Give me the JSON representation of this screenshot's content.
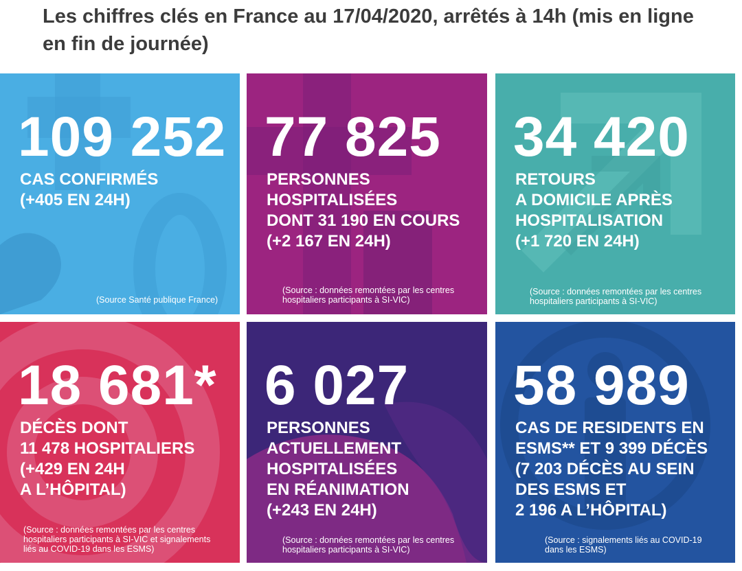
{
  "header": {
    "title": "Les chiffres clés en France au 17/04/2020, arrêtés à 14h (mis en ligne en fin de journée)"
  },
  "colors": {
    "confirmed": "#4aaee3",
    "hospitalized": "#9c2480",
    "returned_home": "#48aeab",
    "deaths": "#d8325a",
    "icu": "#3c2678",
    "esms": "#2354a0",
    "text": "#ffffff",
    "title": "#3c3c3c"
  },
  "tiles": [
    {
      "number": "109 252",
      "lines": [
        "CAS CONFIRMÉS",
        "(+405 EN 24H)"
      ],
      "source_lines": [
        "(Source Santé publique France)"
      ],
      "icon": "plus-zero-watermark"
    },
    {
      "number": "77 825",
      "lines": [
        "PERSONNES",
        "HOSPITALISÉES",
        "DONT 31 190 EN COURS",
        "(+2 167 EN 24H)"
      ],
      "source_lines": [
        "(Source : données remontées par les centres",
        "hospitaliers participants à SI-VIC)"
      ],
      "icon": "cross-watermark"
    },
    {
      "number": "34 420",
      "lines": [
        "RETOURS",
        "A DOMICILE APRÈS",
        "HOSPITALISATION",
        "(+1 720 EN 24H)"
      ],
      "source_lines": [
        "(Source : données remontées par les centres",
        "hospitaliers participants à SI-VIC)"
      ],
      "icon": "arrow-watermark"
    },
    {
      "number": "18 681*",
      "lines": [
        "DÉCÈS DONT",
        "11 478 HOSPITALIERS",
        "(+429 EN 24H",
        "A L’HÔPITAL)"
      ],
      "source_lines": [
        "(Source : données remontées par les centres",
        "hospitaliers participants à SI-VIC et signalements",
        "liés au COVID-19 dans les ESMS)"
      ],
      "icon": "circle-watermark"
    },
    {
      "number": "6 027",
      "lines": [
        "PERSONNES",
        "ACTUELLEMENT",
        "HOSPITALISÉES",
        "EN RÉANIMATION",
        "(+243 EN 24H)"
      ],
      "source_lines": [
        "(Source : données remontées par les centres",
        "hospitaliers participants à SI-VIC)"
      ],
      "icon": "wave-watermark"
    },
    {
      "number": "58 989",
      "lines": [
        "CAS DE RESIDENTS EN",
        "ESMS** ET 9 399 DÉCÈS",
        "(7 203 DÉCÈS AU SEIN",
        "DES ESMS ET",
        "2 196 A L’HÔPITAL)"
      ],
      "source_lines": [
        "(Source : signalements liés au COVID-19",
        "dans les ESMS)"
      ],
      "icon": "info-watermark"
    }
  ]
}
